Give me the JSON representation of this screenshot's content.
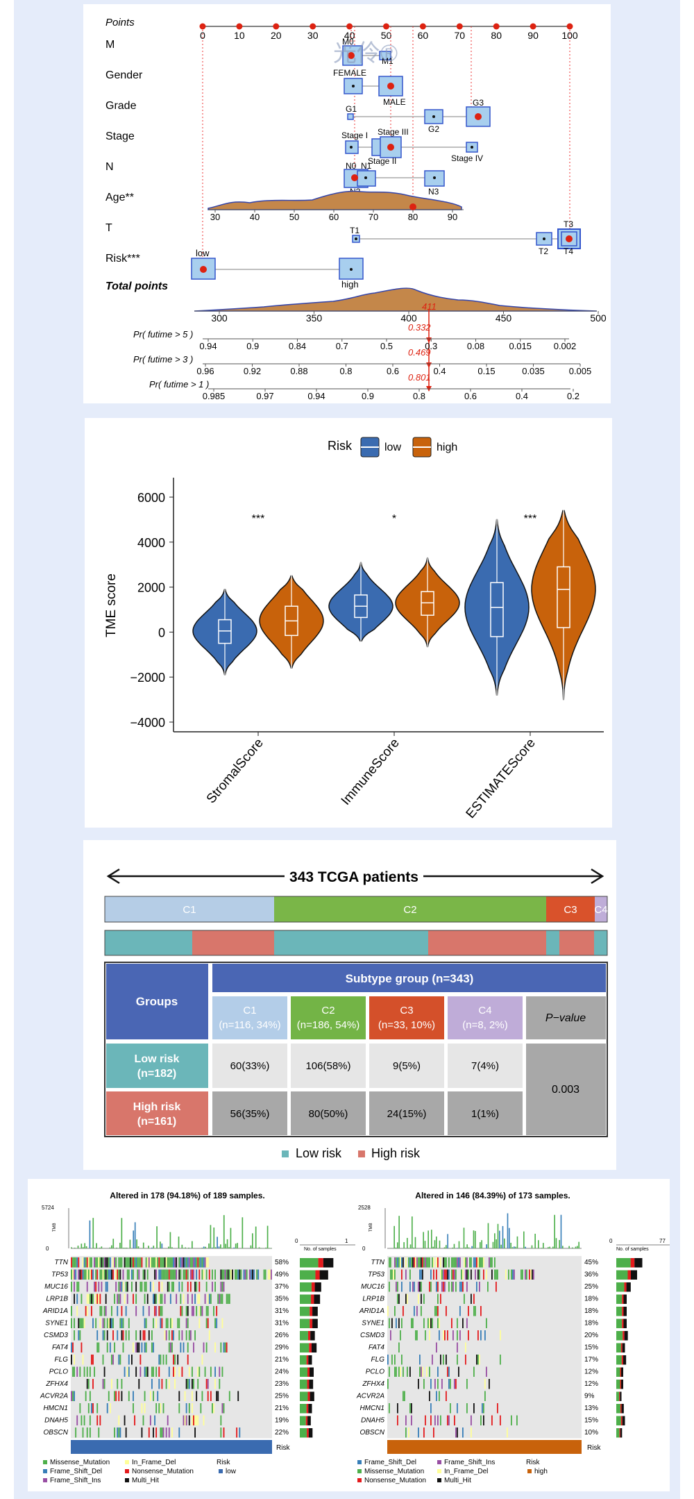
{
  "nomogram": {
    "rows": [
      {
        "label": "Points"
      },
      {
        "label": "M"
      },
      {
        "label": "Gender"
      },
      {
        "label": "Grade"
      },
      {
        "label": "Stage"
      },
      {
        "label": "N"
      },
      {
        "label": "Age**"
      },
      {
        "label": "T"
      },
      {
        "label": "Risk***"
      },
      {
        "label": "Total points"
      }
    ],
    "points_ticks": [
      "0",
      "10",
      "20",
      "30",
      "40",
      "50",
      "60",
      "70",
      "80",
      "90",
      "100"
    ],
    "level_labels": {
      "M0": "M0",
      "M1": "M1",
      "FEMALE": "FEMALE",
      "MALE": "MALE",
      "G1": "G1",
      "G2": "G2",
      "G3": "G3",
      "StageI": "Stage I",
      "StageII": "Stage II",
      "StageIII": "Stage III",
      "StageIV": "Stage IV",
      "N0": "N0",
      "N1": "N1",
      "N2": "N2",
      "N3": "N3",
      "T1": "T1",
      "T2": "T2",
      "T3": "T3",
      "T4": "T4",
      "low": "low",
      "high": "high"
    },
    "age_ticks": [
      "30",
      "40",
      "50",
      "60",
      "70",
      "80",
      "90"
    ],
    "total_ticks": [
      "300",
      "350",
      "400",
      "450",
      "500"
    ],
    "total_value": "411",
    "prob_rows": [
      {
        "label": "Pr( futime > 5 )",
        "value": "0.332",
        "ticks": [
          "0.94",
          "0.9",
          "0.84",
          "0.7",
          "0.5",
          "0.3",
          "0.08",
          "0.015",
          "0.002"
        ]
      },
      {
        "label": "Pr( futime > 3 )",
        "value": "0.469",
        "ticks": [
          "0.96",
          "0.92",
          "0.88",
          "0.8",
          "0.6",
          "0.4",
          "0.15",
          "0.035",
          "0.005"
        ]
      },
      {
        "label": "Pr( futime > 1 )",
        "value": "0.801",
        "ticks": [
          "0.985",
          "0.97",
          "0.94",
          "0.9",
          "0.8",
          "0.6",
          "0.4",
          "0.2"
        ]
      }
    ],
    "watermark": "光伶®"
  },
  "violin": {
    "legend_title": "Risk",
    "legend_low": "low",
    "legend_high": "high",
    "low_color": "#3a6bb0",
    "high_color": "#c8620b",
    "ylabel": "TME score",
    "y_ticks": [
      "6000",
      "4000",
      "2000",
      "0",
      "−2000",
      "−4000"
    ],
    "categories": [
      "StromalScore",
      "ImmuneScore",
      "ESTIMATEScore"
    ],
    "significance": [
      "***",
      "*",
      "***"
    ]
  },
  "chart_data": [
    {
      "type": "violin",
      "ylabel": "TME score",
      "ylim": [
        -4000,
        7000
      ],
      "categories": [
        "StromalScore",
        "ImmuneScore",
        "ESTIMATEScore"
      ],
      "series": [
        {
          "name": "low",
          "color": "#3a6bb0",
          "median": [
            50,
            1150,
            1100
          ],
          "q1": [
            -500,
            650,
            -200
          ],
          "q3": [
            550,
            1650,
            2200
          ],
          "whisker_low": [
            -1900,
            -400,
            -2800
          ],
          "whisker_high": [
            1900,
            3100,
            5000
          ]
        },
        {
          "name": "high",
          "color": "#c8620b",
          "median": [
            500,
            1300,
            1900
          ],
          "q1": [
            -150,
            750,
            200
          ],
          "q3": [
            1150,
            1800,
            2900
          ],
          "whisker_low": [
            -1600,
            -650,
            -3000
          ],
          "whisker_high": [
            2500,
            3300,
            5400
          ]
        }
      ],
      "significance": [
        "***",
        "*",
        "***"
      ]
    },
    {
      "type": "table",
      "title": "343 TCGA patients",
      "subtype_proportions": [
        {
          "name": "C1",
          "n": 116
        },
        {
          "name": "C2",
          "n": 186
        },
        {
          "name": "C3",
          "n": 33
        },
        {
          "name": "C4",
          "n": 8
        }
      ]
    }
  ],
  "subtype": {
    "arrow_title": "343 TCGA patients",
    "bar_labels": [
      "C1",
      "C2",
      "C3",
      "C4"
    ],
    "header_groups": "Groups",
    "header_subtype": "Subtype group (n=343)",
    "cols": [
      {
        "name": "C1",
        "n": "(n=116, 34%)"
      },
      {
        "name": "C2",
        "n": "(n=186, 54%)"
      },
      {
        "name": "C3",
        "n": "(n=33, 10%)"
      },
      {
        "name": "C4",
        "n": "(n=8, 2%)"
      }
    ],
    "pvalue_header": "P−value",
    "low_row": {
      "label1": "Low risk",
      "label2": "(n=182)",
      "cells": [
        "60(33%)",
        "106(58%)",
        "9(5%)",
        "7(4%)"
      ]
    },
    "high_row": {
      "label1": "High risk",
      "label2": "(n=161)",
      "cells": [
        "56(35%)",
        "80(50%)",
        "24(15%)",
        "1(1%)"
      ]
    },
    "pvalue": "0.003",
    "legend_low": "Low risk",
    "legend_high": "High risk"
  },
  "waterfall": {
    "left": {
      "title": "Altered in 178 (94.18%) of 189 samples.",
      "tmb_max": "5724",
      "tmb_min": "0",
      "tmb_label": "TMB",
      "samples_axis": [
        "0",
        "1"
      ],
      "samples_label": "No. of samples",
      "genes": [
        "TTN",
        "TP53",
        "MUC16",
        "LRP1B",
        "ARID1A",
        "SYNE1",
        "CSMD3",
        "FAT4",
        "FLG",
        "PCLO",
        "ZFHX4",
        "ACVR2A",
        "HMCN1",
        "DNAH5",
        "OBSCN"
      ],
      "pcts": [
        "58%",
        "49%",
        "37%",
        "35%",
        "31%",
        "31%",
        "26%",
        "29%",
        "21%",
        "24%",
        "23%",
        "25%",
        "21%",
        "19%",
        "22%"
      ],
      "risk_label": "Risk",
      "legend": [
        "Missense_Mutation",
        "In_Frame_Del",
        "Frame_Shift_Del",
        "Nonsense_Mutation",
        "Frame_Shift_Ins",
        "Multi_Hit"
      ],
      "legend_risk_title": "Risk",
      "legend_risk_value": "low"
    },
    "right": {
      "title": "Altered in 146 (84.39%) of 173 samples.",
      "tmb_max": "2528",
      "tmb_min": "0",
      "tmb_label": "TMB",
      "samples_axis": [
        "0",
        "77"
      ],
      "samples_label": "No. of samples",
      "genes": [
        "TTN",
        "TP53",
        "MUC16",
        "LRP1B",
        "ARID1A",
        "SYNE1",
        "CSMD3",
        "FAT4",
        "FLG",
        "PCLO",
        "ZFHX4",
        "ACVR2A",
        "HMCN1",
        "DNAH5",
        "OBSCN"
      ],
      "pcts": [
        "45%",
        "36%",
        "25%",
        "18%",
        "18%",
        "18%",
        "20%",
        "15%",
        "17%",
        "12%",
        "12%",
        "9%",
        "13%",
        "15%",
        "10%"
      ],
      "risk_label": "Risk",
      "legend": [
        "Frame_Shift_Del",
        "Frame_Shift_Ins",
        "Missense_Mutation",
        "In_Frame_Del",
        "Nonsense_Mutation",
        "Multi_Hit"
      ],
      "legend_risk_title": "Risk",
      "legend_risk_value": "high"
    }
  }
}
